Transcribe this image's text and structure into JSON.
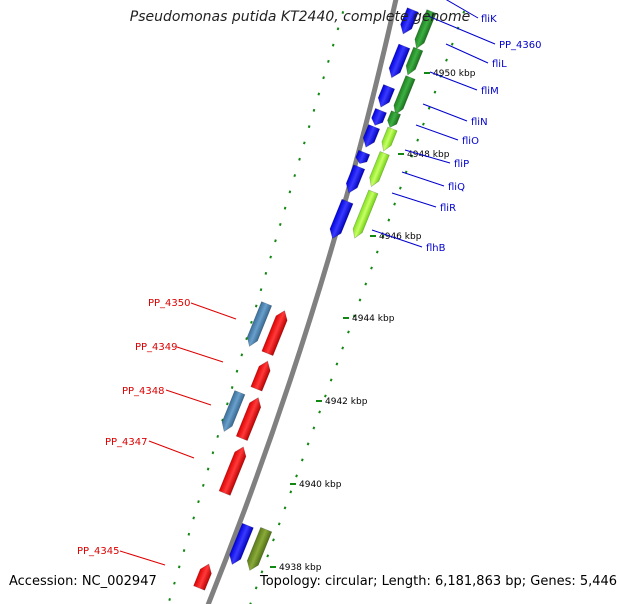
{
  "title": "Pseudomonas putida KT2440, complete genome",
  "footer": {
    "accession": "Accession: NC_002947",
    "topology": "Topology: circular; Length: 6,181,863 bp; Genes: 5,446"
  },
  "ruler": [
    {
      "label": "4950 kbp"
    },
    {
      "label": "4948 kbp"
    },
    {
      "label": "4946 kbp"
    },
    {
      "label": "4944 kbp"
    },
    {
      "label": "4942 kbp"
    },
    {
      "label": "4940 kbp"
    },
    {
      "label": "4938 kbp"
    }
  ],
  "gene_labels": [
    {
      "text": "fliK",
      "strand": "forward",
      "color": "#0000cc"
    },
    {
      "text": "PP_4360",
      "strand": "forward",
      "color": "#0000cc"
    },
    {
      "text": "fliL",
      "strand": "forward",
      "color": "#0000cc"
    },
    {
      "text": "fliM",
      "strand": "forward",
      "color": "#0000cc"
    },
    {
      "text": "fliN",
      "strand": "forward",
      "color": "#0000cc"
    },
    {
      "text": "fliO",
      "strand": "forward",
      "color": "#0000cc"
    },
    {
      "text": "fliP",
      "strand": "forward",
      "color": "#0000cc"
    },
    {
      "text": "fliQ",
      "strand": "forward",
      "color": "#0000cc"
    },
    {
      "text": "fliR",
      "strand": "forward",
      "color": "#0000cc"
    },
    {
      "text": "flhB",
      "strand": "forward",
      "color": "#0000cc"
    },
    {
      "text": "PP_4350",
      "strand": "reverse",
      "color": "#dd0000"
    },
    {
      "text": "PP_4349",
      "strand": "reverse",
      "color": "#dd0000"
    },
    {
      "text": "PP_4348",
      "strand": "reverse",
      "color": "#dd0000"
    },
    {
      "text": "PP_4347",
      "strand": "reverse",
      "color": "#dd0000"
    },
    {
      "text": "PP_4345",
      "strand": "reverse",
      "color": "#dd0000"
    }
  ],
  "colors": {
    "forward_gene": "#0000ff",
    "reverse_gene": "#ff0000",
    "cds_forward": "#2e9e2e",
    "cds_light": "#99ff33",
    "cds_steelblue": "#4682b4",
    "cds_olive": "#6b8e23",
    "backbone": "#808080",
    "gc_dots": "#118811"
  }
}
